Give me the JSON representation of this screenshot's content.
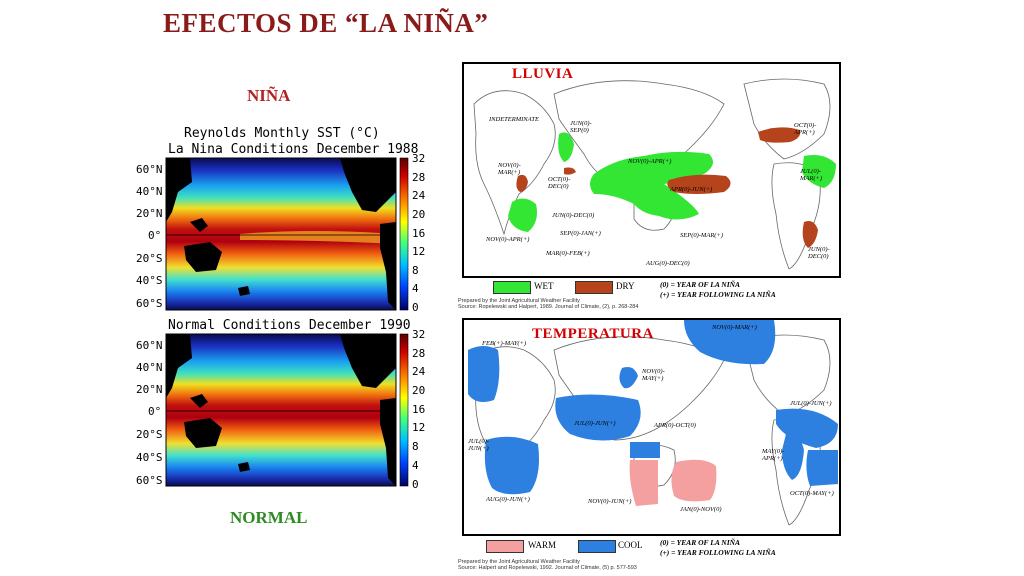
{
  "slide": {
    "title": "EFECTOS DE “LA NIÑA”",
    "label_nina": "NIÑA",
    "label_normal": "NORMAL"
  },
  "sst": {
    "header": "Reynolds Monthly SST  (°C)",
    "top_caption": "La Nina Conditions December 1988",
    "bottom_caption": "Normal Conditions December 1990",
    "lat_ticks": [
      "60°N",
      "40°N",
      "20°N",
      "0°",
      "20°S",
      "40°S",
      "60°S"
    ],
    "colorbar_ticks": [
      "32",
      "28",
      "24",
      "20",
      "16",
      "12",
      "8",
      "4",
      "0"
    ]
  },
  "lluvia": {
    "title": "LLUVIA",
    "annotations": {
      "indeterminate": "INDETERMINATE",
      "jun_sep": "JUN(0)-\nSEP(0)",
      "nov_mar_africa": "NOV(0)-\nMAR(+)",
      "oct_dec": "OCT(0)-\nDEC(0)",
      "nov_apr_asia": "NOV(0)-APR(+)",
      "apr_jun": "APR(0)-JUN(+)",
      "jun_dec": "JUN(0)-DEC(0)",
      "sep_jan": "SEP(0)-JAN(+)",
      "mar_feb": "MAR(0)-FEB(+)",
      "sep_mar": "SEP(0)-MAR(+)",
      "aug_dec": "AUG(0)-DEC(0)",
      "nov_apr_africa": "NOV(0)-APR(+)",
      "oct_apr": "OCT(0)-\nAPR(+)",
      "jul_mar": "JUL(0)-\nMAR(+)",
      "jun_dec_sa": "JUN(0)-\nDEC(0)"
    },
    "legend": {
      "wet": "WET",
      "dry": "DRY"
    },
    "note_line1": "(0)  = YEAR OF LA NIÑA",
    "note_line2": "(+) = YEAR FOLLOWING LA NIÑA",
    "source_line1": "Prepared by the Joint Agricultural Weather Facility",
    "source_line2": "Source: Ropelewski and Halpert, 1989. Journal of Climate, (2), p. 268-284"
  },
  "temperatura": {
    "title": "TEMPERATURA",
    "annotations": {
      "feb_may": "FEB(+)-MAY(+)",
      "nov_mar_top": "NOV(0)-MAR(+)",
      "nov_may": "NOV(0)-\nMAY(+)",
      "jul_jun_asia": "JUL(0)-JUN(+)",
      "apr_oct": "APR(0)-OCT(0)",
      "jul_jun_africa": "JUL(0)-\nJUN(+)",
      "aug_jun": "AUG(0)-JUN(+)",
      "nov_jun": "NOV(0)-JUN(+)",
      "jan_nov": "JAN(0)-NOV(0)",
      "jul_jun_sa": "JUL(0)-JUN(+)",
      "may_apr": "MAY(0)-\nAPR(+)",
      "oct_may": "OCT(0)-MAY(+)"
    },
    "legend": {
      "warm": "WARM",
      "cool": "COOL"
    },
    "note_line1": "(0) = YEAR OF LA NIÑA",
    "note_line2": "(+) = YEAR FOLLOWING LA NIÑA",
    "source_line1": "Prepared by the Joint Agricultural Weather Facility",
    "source_line2": "Source: Halpert and Ropelewski, 1992. Journal of Climate, (5) p. 577-593"
  },
  "colors": {
    "title": "#8b1a1a",
    "wet": "#33e633",
    "dry": "#b5441c",
    "warm": "#f4a0a0",
    "cool": "#2d7fe0"
  }
}
